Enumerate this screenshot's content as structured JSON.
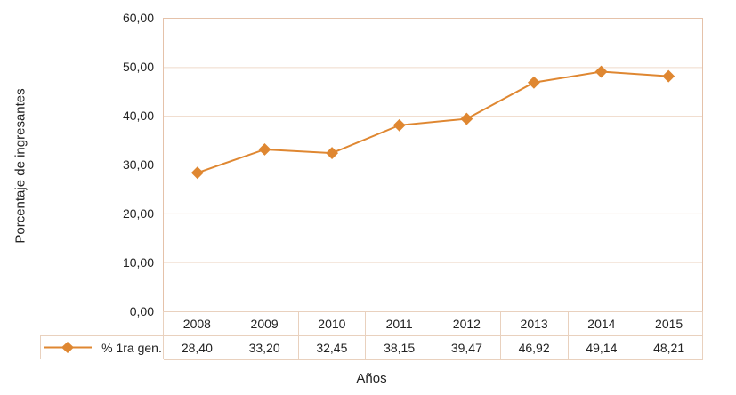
{
  "chart_data": {
    "type": "line",
    "title": "",
    "xlabel": "Años",
    "ylabel": "Porcentaje de ingresantes",
    "categories": [
      "2008",
      "2009",
      "2010",
      "2011",
      "2012",
      "2013",
      "2014",
      "2015"
    ],
    "series": [
      {
        "name": "% 1ra gen.",
        "values": [
          28.4,
          33.2,
          32.45,
          38.15,
          39.47,
          46.92,
          49.14,
          48.21
        ],
        "values_display": [
          "28,40",
          "33,20",
          "32,45",
          "38,15",
          "39,47",
          "46,92",
          "49,14",
          "48,21"
        ],
        "marker": "diamond"
      }
    ],
    "ylim": [
      0,
      60
    ],
    "ytick_step": 10,
    "ytick_labels": [
      "0,00",
      "10,00",
      "20,00",
      "30,00",
      "40,00",
      "50,00",
      "60,00"
    ],
    "grid": "horizontal",
    "legend_position": "data-table-left",
    "colors": {
      "series": "#DF8731",
      "grid": "#EFDACA",
      "axis_border": "#E5C2AA",
      "table_border": "#E9D1BE",
      "text": "#222222"
    }
  }
}
